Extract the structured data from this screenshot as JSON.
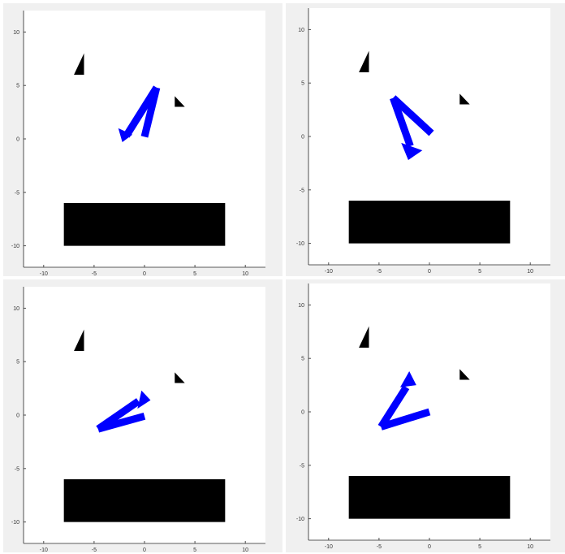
{
  "chart_data": [
    {
      "type": "scatter",
      "title": "",
      "xlabel": "",
      "ylabel": "",
      "xlim": [
        -12,
        12
      ],
      "ylim": [
        -12,
        12
      ],
      "xticks": [
        "-10",
        "-5",
        "0",
        "5",
        "10"
      ],
      "yticks": [
        "10",
        "5",
        "0",
        "-5",
        "-10"
      ],
      "grid": false,
      "colors": {
        "robot": "#0000ff",
        "obstacle": "#000000"
      },
      "obstacles": [
        {
          "name": "triangle-obstacle-upper-left",
          "points": [
            [
              -7,
              6
            ],
            [
              -6,
              6
            ],
            [
              -6,
              8
            ]
          ]
        },
        {
          "name": "triangle-obstacle-right",
          "points": [
            [
              3,
              4
            ],
            [
              3,
              3
            ],
            [
              4,
              3
            ]
          ]
        },
        {
          "name": "rectangle-obstacle",
          "points": [
            [
              -8,
              -6
            ],
            [
              8,
              -6
            ],
            [
              8,
              -10
            ],
            [
              -8,
              -10
            ]
          ]
        }
      ],
      "robot_segments": [
        {
          "from": [
            0,
            0.2
          ],
          "to": [
            1.2,
            4.8
          ]
        },
        {
          "from": [
            1.2,
            4.8
          ],
          "to": [
            -1.8,
            0.3
          ]
        }
      ],
      "robot_arrowhead": {
        "tip": [
          -2.2,
          -0.3
        ],
        "base": [
          [
            -2.6,
            1.0
          ],
          [
            -1.2,
            0.4
          ]
        ]
      }
    },
    {
      "type": "scatter",
      "title": "",
      "xlabel": "",
      "ylabel": "",
      "xlim": [
        -12,
        12
      ],
      "ylim": [
        -12,
        12
      ],
      "xticks": [
        "-10",
        "-5",
        "0",
        "5",
        "10"
      ],
      "yticks": [
        "10",
        "5",
        "0",
        "-5",
        "-10"
      ],
      "grid": false,
      "colors": {
        "robot": "#0000ff",
        "obstacle": "#000000"
      },
      "obstacles": [
        {
          "name": "triangle-obstacle-upper-left",
          "points": [
            [
              -7,
              6
            ],
            [
              -6,
              6
            ],
            [
              -6,
              8
            ]
          ]
        },
        {
          "name": "triangle-obstacle-right",
          "points": [
            [
              3,
              4
            ],
            [
              3,
              3
            ],
            [
              4,
              3
            ]
          ]
        },
        {
          "name": "rectangle-obstacle",
          "points": [
            [
              -8,
              -6
            ],
            [
              8,
              -6
            ],
            [
              8,
              -10
            ],
            [
              -8,
              -10
            ]
          ]
        }
      ],
      "robot_segments": [
        {
          "from": [
            0.2,
            0.3
          ],
          "to": [
            -3.6,
            3.6
          ]
        },
        {
          "from": [
            -3.6,
            3.6
          ],
          "to": [
            -1.9,
            -0.9
          ]
        }
      ],
      "robot_arrowhead": {
        "tip": [
          -2.1,
          -2.2
        ],
        "base": [
          [
            -2.8,
            -0.6
          ],
          [
            -0.7,
            -1.3
          ]
        ]
      }
    },
    {
      "type": "scatter",
      "title": "",
      "xlabel": "",
      "ylabel": "",
      "xlim": [
        -12,
        12
      ],
      "ylim": [
        -12,
        12
      ],
      "xticks": [
        "-10",
        "-5",
        "0",
        "5",
        "10"
      ],
      "yticks": [
        "10",
        "5",
        "0",
        "-5",
        "-10"
      ],
      "grid": false,
      "colors": {
        "robot": "#0000ff",
        "obstacle": "#000000"
      },
      "obstacles": [
        {
          "name": "triangle-obstacle-upper-left",
          "points": [
            [
              -7,
              6
            ],
            [
              -6,
              6
            ],
            [
              -6,
              8
            ]
          ]
        },
        {
          "name": "triangle-obstacle-right",
          "points": [
            [
              3,
              4
            ],
            [
              3,
              3
            ],
            [
              4,
              3
            ]
          ]
        },
        {
          "name": "rectangle-obstacle",
          "points": [
            [
              -8,
              -6
            ],
            [
              8,
              -6
            ],
            [
              8,
              -10
            ],
            [
              -8,
              -10
            ]
          ]
        }
      ],
      "robot_segments": [
        {
          "from": [
            0,
            -0.1
          ],
          "to": [
            -4.6,
            -1.3
          ]
        },
        {
          "from": [
            -4.6,
            -1.3
          ],
          "to": [
            -0.6,
            1.3
          ]
        }
      ],
      "robot_arrowhead": {
        "tip": [
          0.6,
          1.4
        ],
        "base": [
          [
            -0.3,
            2.3
          ],
          [
            -0.7,
            0.6
          ]
        ]
      }
    },
    {
      "type": "scatter",
      "title": "",
      "xlabel": "",
      "ylabel": "",
      "xlim": [
        -12,
        12
      ],
      "ylim": [
        -12,
        12
      ],
      "xticks": [
        "-10",
        "-5",
        "0",
        "5",
        "10"
      ],
      "yticks": [
        "10",
        "5",
        "0",
        "-5",
        "-10"
      ],
      "grid": false,
      "colors": {
        "robot": "#0000ff",
        "obstacle": "#000000"
      },
      "obstacles": [
        {
          "name": "triangle-obstacle-upper-left",
          "points": [
            [
              -7,
              6
            ],
            [
              -6,
              6
            ],
            [
              -6,
              8
            ]
          ]
        },
        {
          "name": "triangle-obstacle-right",
          "points": [
            [
              3,
              4
            ],
            [
              3,
              3
            ],
            [
              4,
              3
            ]
          ]
        },
        {
          "name": "rectangle-obstacle",
          "points": [
            [
              -8,
              -6
            ],
            [
              8,
              -6
            ],
            [
              8,
              -10
            ],
            [
              -8,
              -10
            ]
          ]
        }
      ],
      "robot_segments": [
        {
          "from": [
            0,
            0
          ],
          "to": [
            -4.8,
            -1.4
          ]
        },
        {
          "from": [
            -4.8,
            -1.4
          ],
          "to": [
            -2.3,
            2.3
          ]
        }
      ],
      "robot_arrowhead": {
        "tip": [
          -2.0,
          3.8
        ],
        "base": [
          [
            -2.9,
            2.3
          ],
          [
            -1.3,
            2.5
          ]
        ]
      }
    }
  ]
}
